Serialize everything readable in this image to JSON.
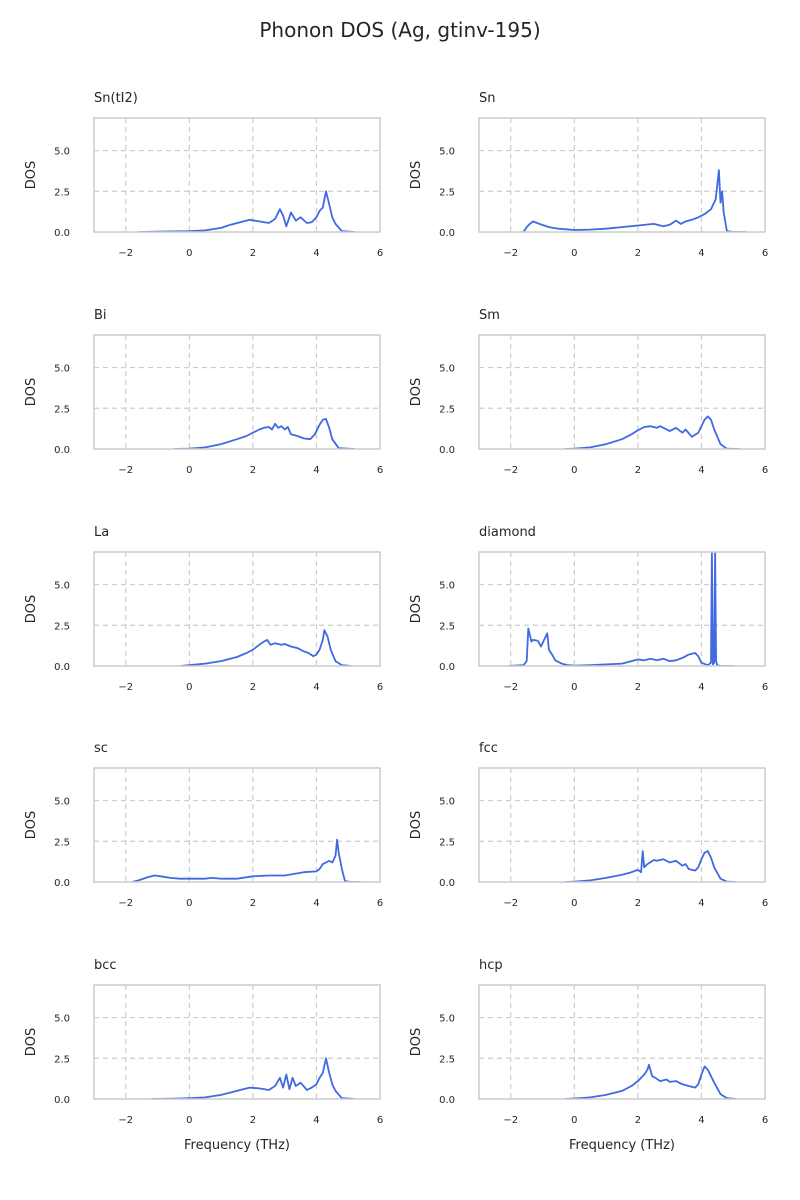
{
  "chart_data": {
    "title": "Phonon DOS (Ag, gtinv-195)",
    "type": "line",
    "line_color": "#4169e1",
    "grid": true,
    "grid_style": "dashed",
    "ylabel": "DOS",
    "xlabel": "Frequency (THz)",
    "xlim": [
      -3,
      6
    ],
    "ylim": [
      0,
      7
    ],
    "xticks": [
      -2,
      0,
      2,
      4,
      6
    ],
    "yticks": [
      0.0,
      2.5,
      5.0
    ],
    "xtick_labels": [
      "−2",
      "0",
      "2",
      "4",
      "6"
    ],
    "ytick_labels": [
      "0.0",
      "2.5",
      "5.0"
    ],
    "panels": [
      {
        "title": "Sn(tI2)",
        "x": [
          -1.6,
          -1,
          0,
          0.5,
          1,
          1.3,
          1.6,
          1.9,
          2.2,
          2.5,
          2.7,
          2.85,
          2.95,
          3.05,
          3.2,
          3.35,
          3.5,
          3.7,
          3.85,
          4.0,
          4.1,
          4.2,
          4.3,
          4.4,
          4.5,
          4.6,
          4.8,
          5.2
        ],
        "y": [
          0,
          0.02,
          0.05,
          0.1,
          0.25,
          0.45,
          0.6,
          0.75,
          0.65,
          0.55,
          0.8,
          1.4,
          1.0,
          0.35,
          1.2,
          0.7,
          0.9,
          0.55,
          0.6,
          0.9,
          1.3,
          1.5,
          2.5,
          1.7,
          0.9,
          0.5,
          0.05,
          0
        ]
      },
      {
        "title": "Sn",
        "x": [
          -1.6,
          -1.5,
          -1.4,
          -1.3,
          -1.1,
          -0.8,
          -0.5,
          0,
          0.5,
          1,
          1.5,
          2,
          2.5,
          2.8,
          3,
          3.2,
          3.35,
          3.5,
          3.7,
          3.9,
          4.1,
          4.3,
          4.45,
          4.55,
          4.6,
          4.65,
          4.7,
          4.8,
          5,
          5.4
        ],
        "y": [
          0,
          0.3,
          0.5,
          0.65,
          0.5,
          0.3,
          0.2,
          0.12,
          0.15,
          0.2,
          0.3,
          0.4,
          0.5,
          0.35,
          0.45,
          0.7,
          0.5,
          0.65,
          0.75,
          0.9,
          1.1,
          1.4,
          2.0,
          3.8,
          1.8,
          2.5,
          1.2,
          0.05,
          0,
          0
        ]
      },
      {
        "title": "Bi",
        "x": [
          -0.5,
          0,
          0.5,
          1,
          1.5,
          1.8,
          2,
          2.2,
          2.35,
          2.5,
          2.6,
          2.7,
          2.8,
          2.9,
          3,
          3.1,
          3.2,
          3.4,
          3.6,
          3.8,
          3.95,
          4.1,
          4.2,
          4.3,
          4.4,
          4.5,
          4.7,
          5.2
        ],
        "y": [
          0,
          0.02,
          0.1,
          0.3,
          0.6,
          0.8,
          1.0,
          1.2,
          1.3,
          1.35,
          1.2,
          1.55,
          1.3,
          1.4,
          1.2,
          1.35,
          0.9,
          0.8,
          0.65,
          0.6,
          0.9,
          1.5,
          1.8,
          1.85,
          1.3,
          0.6,
          0.05,
          0
        ]
      },
      {
        "title": "Sm",
        "x": [
          -0.3,
          0,
          0.5,
          1,
          1.5,
          1.8,
          2,
          2.2,
          2.4,
          2.6,
          2.7,
          2.85,
          3,
          3.2,
          3.4,
          3.5,
          3.7,
          3.9,
          4.0,
          4.1,
          4.2,
          4.3,
          4.4,
          4.6,
          4.8,
          5.2
        ],
        "y": [
          0,
          0.02,
          0.1,
          0.3,
          0.6,
          0.9,
          1.15,
          1.35,
          1.4,
          1.3,
          1.4,
          1.25,
          1.1,
          1.3,
          1.0,
          1.2,
          0.75,
          1.0,
          1.4,
          1.8,
          2.0,
          1.8,
          1.2,
          0.3,
          0.02,
          0
        ]
      },
      {
        "title": "La",
        "x": [
          -0.3,
          0,
          0.5,
          1,
          1.5,
          1.8,
          2,
          2.2,
          2.35,
          2.45,
          2.55,
          2.7,
          2.9,
          3,
          3.2,
          3.4,
          3.6,
          3.75,
          3.9,
          4.0,
          4.1,
          4.2,
          4.25,
          4.35,
          4.45,
          4.6,
          4.8,
          5.1
        ],
        "y": [
          0,
          0.05,
          0.15,
          0.3,
          0.55,
          0.8,
          1.0,
          1.3,
          1.5,
          1.6,
          1.3,
          1.4,
          1.3,
          1.35,
          1.2,
          1.1,
          0.9,
          0.8,
          0.6,
          0.7,
          1.0,
          1.6,
          2.2,
          1.8,
          1.0,
          0.3,
          0.05,
          0
        ]
      },
      {
        "title": "diamond",
        "x": [
          -2.1,
          -1.6,
          -1.5,
          -1.45,
          -1.35,
          -1.3,
          -1.15,
          -1.05,
          -0.95,
          -0.85,
          -0.8,
          -0.7,
          -0.6,
          -0.4,
          -0.2,
          0,
          0.5,
          1,
          1.5,
          1.8,
          2,
          2.2,
          2.4,
          2.6,
          2.8,
          3,
          3.2,
          3.4,
          3.6,
          3.8,
          3.9,
          4.0,
          4.2,
          4.3,
          4.33,
          4.36,
          4.4,
          4.43,
          4.46,
          4.5,
          4.6,
          5.0
        ],
        "y": [
          0,
          0.05,
          0.3,
          2.3,
          1.5,
          1.6,
          1.55,
          1.2,
          1.6,
          2.0,
          1.0,
          0.7,
          0.35,
          0.15,
          0.05,
          0.02,
          0.05,
          0.1,
          0.15,
          0.3,
          0.4,
          0.35,
          0.45,
          0.35,
          0.45,
          0.3,
          0.35,
          0.5,
          0.7,
          0.8,
          0.6,
          0.2,
          0.05,
          0.2,
          7,
          0.1,
          0.2,
          7,
          0.3,
          0.05,
          0,
          0
        ]
      },
      {
        "title": "sc",
        "x": [
          -1.8,
          -1.6,
          -1.3,
          -1.1,
          -0.9,
          -0.6,
          -0.3,
          0,
          0.5,
          0.7,
          1,
          1.5,
          2,
          2.5,
          3,
          3.3,
          3.6,
          4,
          4.1,
          4.2,
          4.3,
          4.4,
          4.5,
          4.6,
          4.65,
          4.7,
          4.8,
          4.9,
          5.1,
          5.4
        ],
        "y": [
          0,
          0.1,
          0.3,
          0.4,
          0.35,
          0.25,
          0.2,
          0.2,
          0.2,
          0.25,
          0.2,
          0.2,
          0.35,
          0.4,
          0.4,
          0.5,
          0.6,
          0.65,
          0.8,
          1.1,
          1.2,
          1.3,
          1.2,
          1.6,
          2.6,
          1.8,
          0.8,
          0.05,
          0,
          0
        ]
      },
      {
        "title": "fcc",
        "x": [
          -0.3,
          0,
          0.5,
          1,
          1.5,
          1.8,
          2,
          2.1,
          2.15,
          2.2,
          2.3,
          2.5,
          2.6,
          2.8,
          3,
          3.2,
          3.4,
          3.5,
          3.6,
          3.8,
          3.9,
          4.0,
          4.1,
          4.2,
          4.3,
          4.4,
          4.6,
          4.8,
          5.1
        ],
        "y": [
          0,
          0.02,
          0.1,
          0.25,
          0.45,
          0.6,
          0.75,
          0.6,
          1.9,
          0.9,
          1.1,
          1.35,
          1.3,
          1.4,
          1.2,
          1.3,
          1.0,
          1.1,
          0.8,
          0.7,
          0.9,
          1.4,
          1.8,
          1.9,
          1.5,
          0.9,
          0.2,
          0.02,
          0
        ]
      },
      {
        "title": "bcc",
        "x": [
          -1.2,
          -0.5,
          0,
          0.5,
          1,
          1.3,
          1.6,
          1.9,
          2.2,
          2.5,
          2.7,
          2.85,
          2.95,
          3.05,
          3.15,
          3.25,
          3.35,
          3.5,
          3.7,
          3.85,
          4.0,
          4.1,
          4.2,
          4.3,
          4.4,
          4.5,
          4.6,
          4.8,
          5.2
        ],
        "y": [
          0,
          0.02,
          0.05,
          0.1,
          0.25,
          0.4,
          0.55,
          0.7,
          0.65,
          0.55,
          0.8,
          1.3,
          0.7,
          1.5,
          0.6,
          1.3,
          0.8,
          1.0,
          0.55,
          0.7,
          0.9,
          1.3,
          1.6,
          2.5,
          1.6,
          0.9,
          0.5,
          0.05,
          0
        ]
      },
      {
        "title": "hcp",
        "x": [
          -0.3,
          0,
          0.5,
          1,
          1.5,
          1.8,
          2,
          2.2,
          2.3,
          2.35,
          2.45,
          2.55,
          2.7,
          2.9,
          3,
          3.2,
          3.4,
          3.6,
          3.8,
          3.9,
          4.0,
          4.1,
          4.2,
          4.3,
          4.4,
          4.6,
          4.8,
          5.1
        ],
        "y": [
          0,
          0.03,
          0.1,
          0.25,
          0.5,
          0.8,
          1.1,
          1.5,
          1.8,
          2.1,
          1.4,
          1.3,
          1.1,
          1.2,
          1.05,
          1.1,
          0.9,
          0.8,
          0.7,
          0.9,
          1.5,
          2.0,
          1.8,
          1.4,
          1.0,
          0.3,
          0.05,
          0
        ]
      }
    ]
  }
}
